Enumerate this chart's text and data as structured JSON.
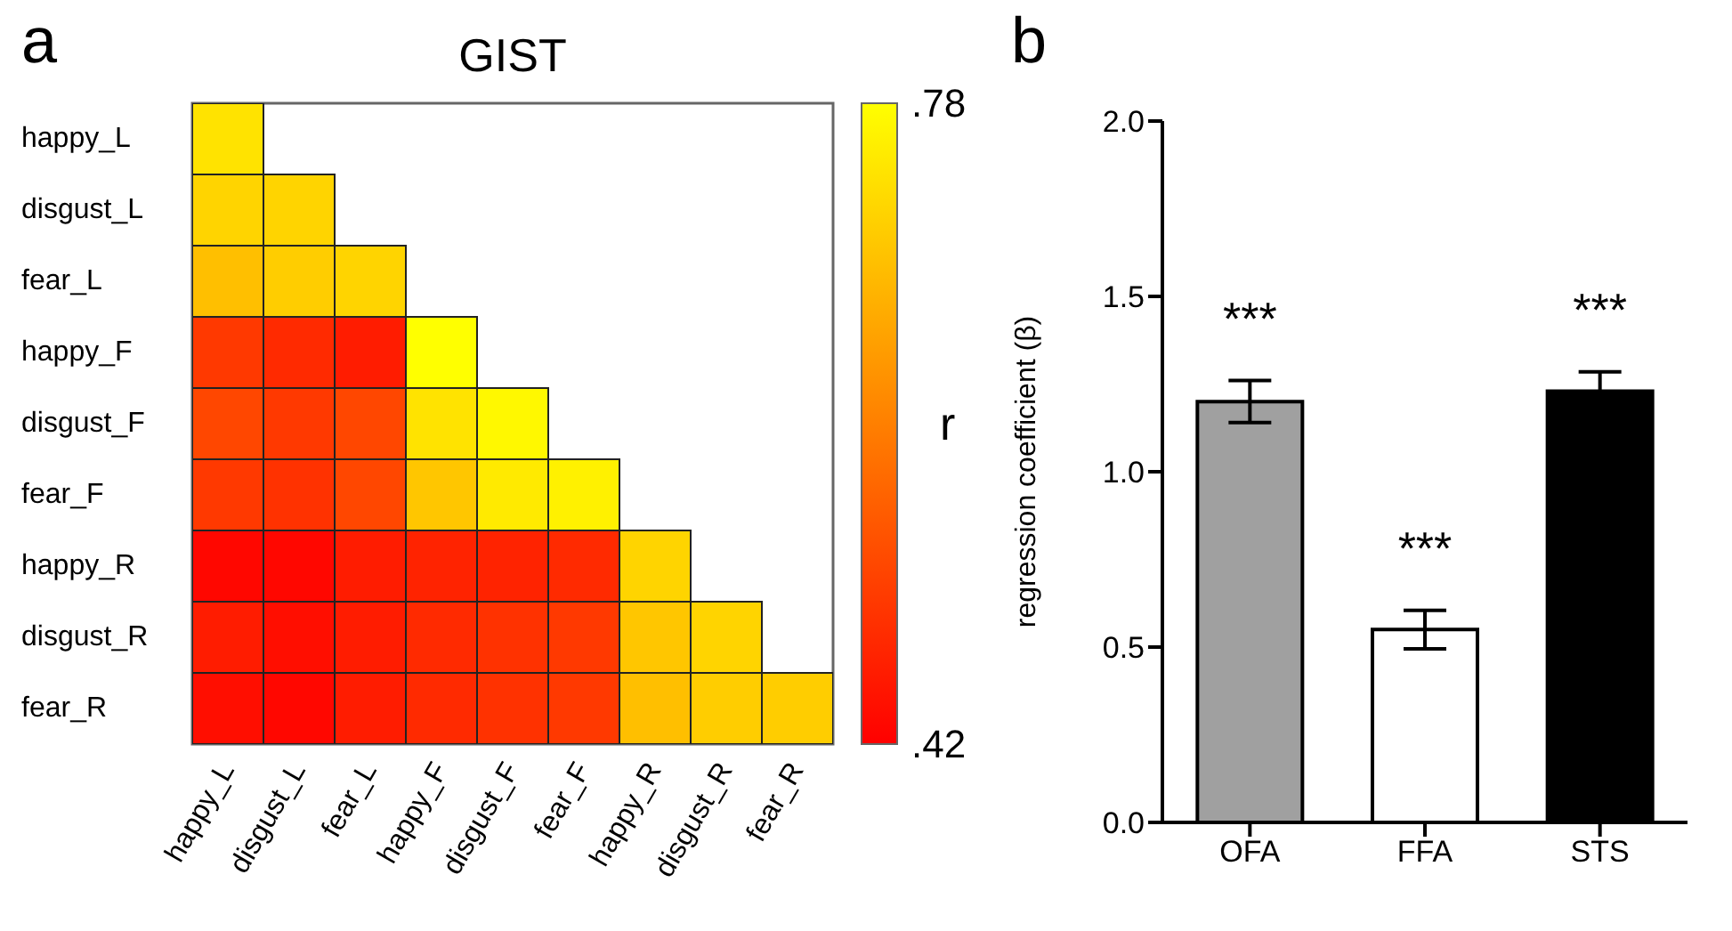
{
  "chart_data": [
    {
      "type": "heatmap",
      "title": "GIST",
      "annotations": [
        "a"
      ],
      "clabel": "r",
      "categories": [
        "happy_L",
        "disgust_L",
        "fear_L",
        "happy_F",
        "disgust_F",
        "fear_F",
        "happy_R",
        "disgust_R",
        "fear_R"
      ],
      "y_categories": [
        "happy_L",
        "disgust_L",
        "fear_L",
        "happy_F",
        "disgust_F",
        "fear_F",
        "happy_R",
        "disgust_R",
        "fear_R"
      ],
      "cells": [
        [
          0.74,
          null,
          null,
          null,
          null,
          null,
          null,
          null,
          null
        ],
        [
          0.72,
          0.72,
          null,
          null,
          null,
          null,
          null,
          null,
          null
        ],
        [
          0.69,
          0.71,
          0.72,
          null,
          null,
          null,
          null,
          null,
          null
        ],
        [
          0.5,
          0.48,
          0.46,
          0.78,
          null,
          null,
          null,
          null,
          null
        ],
        [
          0.52,
          0.5,
          0.52,
          0.74,
          0.77,
          null,
          null,
          null,
          null
        ],
        [
          0.5,
          0.49,
          0.52,
          0.7,
          0.75,
          0.76,
          null,
          null,
          null
        ],
        [
          0.43,
          0.43,
          0.46,
          0.47,
          0.47,
          0.48,
          0.72,
          null,
          null
        ],
        [
          0.46,
          0.44,
          0.46,
          0.48,
          0.49,
          0.5,
          0.7,
          0.72,
          null
        ],
        [
          0.44,
          0.43,
          0.46,
          0.48,
          0.49,
          0.5,
          0.69,
          0.71,
          0.71
        ]
      ],
      "clim": [
        0.42,
        0.78
      ],
      "cticks": [
        {
          "value": 0.42,
          "label": ".42"
        },
        {
          "value": 0.78,
          "label": ".78"
        }
      ]
    },
    {
      "type": "bar",
      "annotations": [
        "b",
        "***",
        "***",
        "***"
      ],
      "ylabel": "regression coefficient (β)",
      "categories": [
        "OFA",
        "FFA",
        "STS"
      ],
      "values": [
        1.2,
        0.55,
        1.23
      ],
      "errors": [
        0.06,
        0.055,
        0.055
      ],
      "colors": [
        "#a0a0a0",
        "#ffffff",
        "#000000"
      ],
      "ylim": [
        0,
        2
      ],
      "yticks": [
        {
          "value": 0,
          "label": "0.0"
        },
        {
          "value": 0.5,
          "label": "0.5"
        },
        {
          "value": 1,
          "label": "1.0"
        },
        {
          "value": 1.5,
          "label": "1.5"
        },
        {
          "value": 2,
          "label": "2.0"
        }
      ]
    }
  ]
}
